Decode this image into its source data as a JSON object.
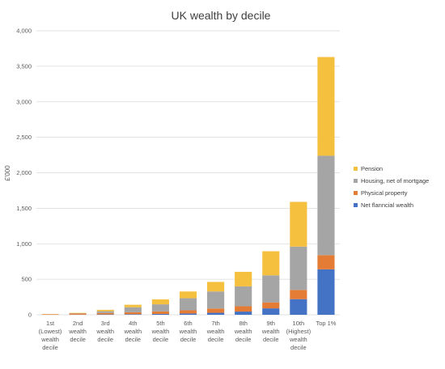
{
  "colors": {
    "pension": "#f6c03f",
    "housing": "#a5a5a5",
    "physical": "#e47c36",
    "financial": "#4472c4",
    "grid": "#d9d9d9",
    "axis_text": "#595959"
  },
  "chart_data": {
    "type": "bar",
    "stacked": true,
    "title": "UK wealth by decile",
    "xlabel": "",
    "ylabel": "£'000",
    "ylim": [
      0,
      4000
    ],
    "yticks": [
      "0",
      "500",
      "1,000",
      "1,500",
      "2,000",
      "2,500",
      "3,000",
      "3,500",
      "4,000"
    ],
    "ytick_values": [
      0,
      500,
      1000,
      1500,
      2000,
      2500,
      3000,
      3500,
      4000
    ],
    "grid": true,
    "legend_position": "right",
    "categories": [
      [
        "1st",
        "(Lowest)",
        "wealth",
        "decile"
      ],
      [
        "2nd",
        "wealth",
        "decile"
      ],
      [
        "3rd",
        "wealth",
        "decile"
      ],
      [
        "4th",
        "wealth",
        "decile"
      ],
      [
        "5th",
        "wealth",
        "decile"
      ],
      [
        "6th",
        "wealth",
        "decile"
      ],
      [
        "7th",
        "wealth",
        "decile"
      ],
      [
        "8th",
        "wealth",
        "decile"
      ],
      [
        "9th",
        "wealth",
        "decile"
      ],
      [
        "10th",
        "(Highest)",
        "wealth",
        "decile"
      ],
      [
        "Top 1%"
      ]
    ],
    "series": [
      {
        "name": "Net flanncial wealth",
        "color_key": "financial",
        "values": [
          0,
          2,
          5,
          8,
          12,
          18,
          28,
          45,
          90,
          220,
          640
        ]
      },
      {
        "name": "Physical property",
        "color_key": "physical",
        "values": [
          8,
          15,
          20,
          28,
          35,
          45,
          60,
          75,
          85,
          130,
          200
        ]
      },
      {
        "name": "Housing, net of mortgage",
        "color_key": "housing",
        "values": [
          0,
          5,
          25,
          70,
          100,
          170,
          240,
          280,
          380,
          610,
          1400
        ]
      },
      {
        "name": "Pension",
        "color_key": "pension",
        "values": [
          2,
          5,
          20,
          35,
          70,
          95,
          135,
          205,
          340,
          630,
          1390
        ]
      }
    ],
    "legend_order": [
      3,
      2,
      1,
      0
    ]
  }
}
